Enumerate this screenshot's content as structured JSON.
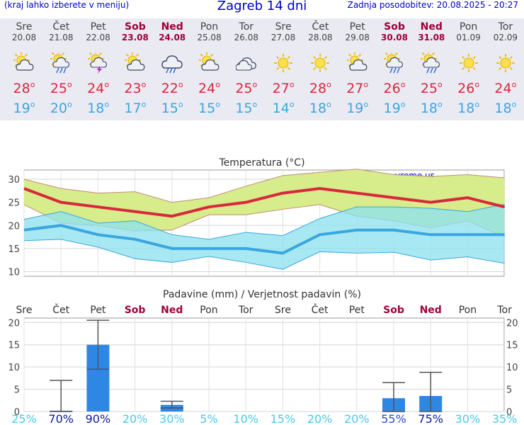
{
  "header": {
    "left": "(kraj lahko izberete v meniju)",
    "title": "Zagreb 14 dni",
    "right": "Zadnja posodobitev: 20.08.2025 - 20:27"
  },
  "forecast": [
    {
      "day": "Sre",
      "date": "20.08",
      "weekend": false,
      "icon": "sun-cloud-icon",
      "tmax": "28",
      "tmin": "19"
    },
    {
      "day": "Čet",
      "date": "21.08",
      "weekend": false,
      "icon": "sun-cloud-rain-icon",
      "tmax": "25",
      "tmin": "20"
    },
    {
      "day": "Pet",
      "date": "22.08",
      "weekend": false,
      "icon": "sun-cloud-thunder-icon",
      "tmax": "24",
      "tmin": "18"
    },
    {
      "day": "Sob",
      "date": "23.08",
      "weekend": true,
      "icon": "sun-cloud-icon",
      "tmax": "23",
      "tmin": "17"
    },
    {
      "day": "Ned",
      "date": "24.08",
      "weekend": true,
      "icon": "cloud-rain-icon",
      "tmax": "22",
      "tmin": "15"
    },
    {
      "day": "Pon",
      "date": "25.08",
      "weekend": false,
      "icon": "sun-cloud-icon",
      "tmax": "24",
      "tmin": "15"
    },
    {
      "day": "Tor",
      "date": "26.08",
      "weekend": false,
      "icon": "cloud-icon",
      "tmax": "25",
      "tmin": "15"
    },
    {
      "day": "Sre",
      "date": "27.08",
      "weekend": false,
      "icon": "sun-icon",
      "tmax": "27",
      "tmin": "14"
    },
    {
      "day": "Čet",
      "date": "28.08",
      "weekend": false,
      "icon": "sun-icon",
      "tmax": "28",
      "tmin": "18"
    },
    {
      "day": "Pet",
      "date": "29.08",
      "weekend": false,
      "icon": "sun-cloud-icon",
      "tmax": "27",
      "tmin": "19"
    },
    {
      "day": "Sob",
      "date": "30.08",
      "weekend": true,
      "icon": "sun-cloud-rain-icon",
      "tmax": "26",
      "tmin": "19"
    },
    {
      "day": "Ned",
      "date": "31.08",
      "weekend": true,
      "icon": "sun-cloud-rain-icon",
      "tmax": "25",
      "tmin": "18"
    },
    {
      "day": "Pon",
      "date": "01.09",
      "weekend": false,
      "icon": "sun-icon",
      "tmax": "26",
      "tmin": "18"
    },
    {
      "day": "Tor",
      "date": "02.09",
      "weekend": false,
      "icon": "sun-icon",
      "tmax": "24",
      "tmin": "18"
    }
  ],
  "degree_symbol": "o",
  "colors": {
    "max": "#d8283c",
    "min": "#3aa6e0",
    "weekend": "#a0003a",
    "precip_bar": "#2f87e4"
  },
  "chart_data": [
    {
      "type": "line",
      "title": "Temperatura (°C)",
      "watermark": "vreme.us",
      "ylim": [
        9,
        32
      ],
      "yticks": [
        10,
        15,
        20,
        25,
        30
      ],
      "grid": true,
      "series": [
        {
          "values": [
            28,
            25,
            24,
            23,
            22,
            24,
            25,
            27,
            28,
            27,
            26,
            25,
            26,
            24
          ],
          "band_high": [
            30,
            28,
            27,
            27.3,
            25,
            26,
            28.5,
            30.8,
            31.5,
            32.2,
            31,
            30.6,
            31,
            30.3
          ],
          "band_low": [
            24.5,
            20.5,
            20,
            18.8,
            19,
            22.3,
            22.3,
            23.5,
            24.5,
            22,
            21,
            19.5,
            21,
            17.5
          ]
        },
        {
          "values": [
            19,
            20,
            18,
            17,
            15,
            15,
            15,
            14,
            18,
            19,
            19,
            18,
            18,
            18
          ],
          "band_high": [
            21.3,
            23,
            20.5,
            21,
            18,
            17,
            18.5,
            17.8,
            21.5,
            24,
            24,
            23.7,
            23,
            24.6
          ],
          "band_low": [
            16.7,
            17,
            15.3,
            12.8,
            12,
            13.3,
            12,
            10.5,
            14.3,
            14,
            14.2,
            12.5,
            13.2,
            11.8
          ]
        }
      ]
    },
    {
      "type": "bar",
      "title": "Padavine (mm) / Verjetnost padavin (%)",
      "categories": [
        "Sre",
        "Čet",
        "Pet",
        "Sob",
        "Ned",
        "Pon",
        "Tor",
        "Sre",
        "Čet",
        "Pet",
        "Sob",
        "Ned",
        "Pon",
        "Tor"
      ],
      "weekend": [
        false,
        false,
        false,
        true,
        true,
        false,
        false,
        false,
        false,
        false,
        true,
        true,
        false,
        false
      ],
      "values": [
        0,
        0.2,
        15,
        0,
        1.5,
        0,
        0,
        0,
        0,
        0,
        3,
        3.5,
        0,
        0
      ],
      "err_low": [
        null,
        0,
        9.5,
        null,
        0.8,
        null,
        null,
        null,
        null,
        null,
        0,
        0,
        null,
        null
      ],
      "err_high": [
        null,
        7,
        20.5,
        null,
        2.3,
        null,
        null,
        null,
        null,
        null,
        6.5,
        8.8,
        null,
        null
      ],
      "probability": [
        "25%",
        "70%",
        "90%",
        "20%",
        "30%",
        "5%",
        "10%",
        "15%",
        "20%",
        "20%",
        "55%",
        "75%",
        "30%",
        "35%"
      ],
      "prob_values": [
        25,
        70,
        90,
        20,
        30,
        5,
        10,
        15,
        20,
        20,
        55,
        75,
        30,
        35
      ],
      "ylim": [
        0,
        21
      ],
      "yticks": [
        0,
        5,
        10,
        15,
        20
      ]
    }
  ]
}
